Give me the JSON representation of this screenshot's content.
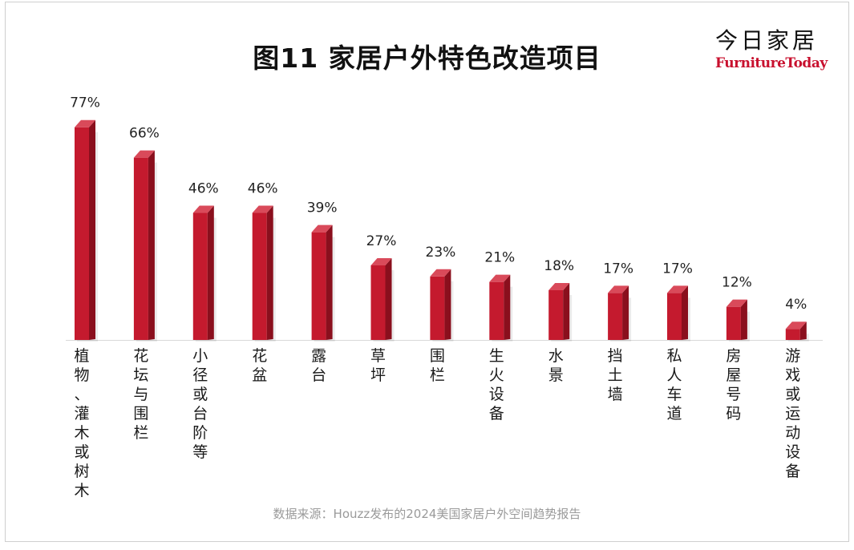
{
  "title": "图11  家居户外特色改造项目",
  "logo": {
    "cn": "今日家居",
    "en": "FurnitureToday"
  },
  "source": "数据来源：Houzz发布的2024美国家居户外空间趋势报告",
  "colors": {
    "bar_front": "#c41a2e",
    "bar_top": "#d94a5a",
    "bar_side": "#8a0f1d"
  },
  "chart_data": {
    "type": "bar",
    "title": "图11  家居户外特色改造项目",
    "categories": [
      "植物、灌木或树木",
      "花坛与围栏",
      "小径或台阶等",
      "花盆",
      "露台",
      "草坪",
      "围栏",
      "生火设备",
      "水景",
      "挡土墙",
      "私人车道",
      "房屋号码",
      "游戏或运动设备"
    ],
    "values": [
      77,
      66,
      46,
      46,
      39,
      27,
      23,
      21,
      18,
      17,
      17,
      12,
      4
    ],
    "value_labels": [
      "77%",
      "66%",
      "46%",
      "46%",
      "39%",
      "27%",
      "23%",
      "21%",
      "18%",
      "17%",
      "17%",
      "12%",
      "4%"
    ],
    "unit": "%",
    "ylim": [
      0,
      80
    ],
    "grid": false,
    "legend": "none"
  }
}
